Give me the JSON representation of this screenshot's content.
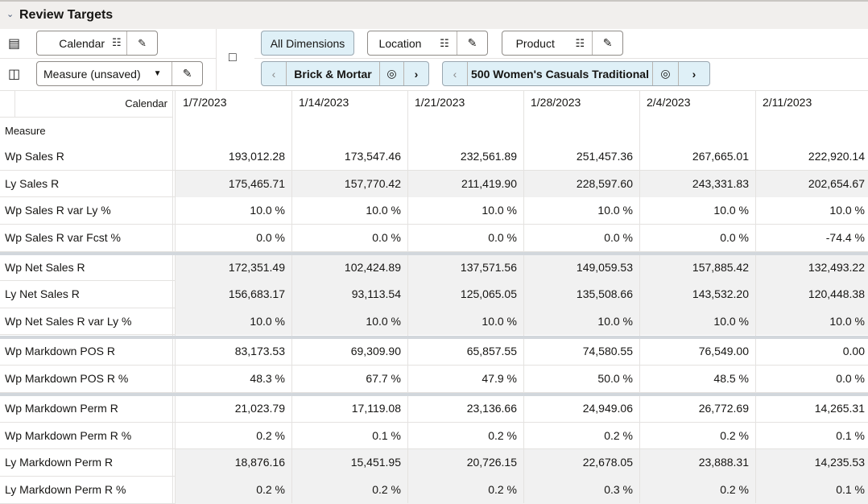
{
  "header": {
    "title": "Review Targets"
  },
  "toolbar": {
    "row_dim": {
      "label": "Calendar"
    },
    "col_dim": {
      "label": "Measure (unsaved)"
    },
    "all_dimensions": "All Dimensions",
    "location": "Location",
    "product": "Product",
    "location_value": "Brick & Mortar",
    "product_value": "500 Women's Casuals Traditional"
  },
  "grid": {
    "corner_col_label": "Calendar",
    "corner_row_label": "Measure",
    "columns": [
      "1/7/2023",
      "1/14/2023",
      "1/21/2023",
      "1/28/2023",
      "2/4/2023",
      "2/11/2023"
    ],
    "rows": [
      {
        "label": "Wp Sales R",
        "values": [
          "193,012.28",
          "173,547.46",
          "232,561.89",
          "251,457.36",
          "267,665.01",
          "222,920.14"
        ]
      },
      {
        "label": "Ly Sales R",
        "values": [
          "175,465.71",
          "157,770.42",
          "211,419.90",
          "228,597.60",
          "243,331.83",
          "202,654.67"
        ]
      },
      {
        "label": "Wp Sales R var Ly %",
        "values": [
          "10.0 %",
          "10.0 %",
          "10.0 %",
          "10.0 %",
          "10.0 %",
          "10.0 %"
        ]
      },
      {
        "label": "Wp Sales R var Fcst %",
        "values": [
          "0.0 %",
          "0.0 %",
          "0.0 %",
          "0.0 %",
          "0.0 %",
          "-74.4 %"
        ]
      },
      {
        "label": "Wp Net Sales R",
        "values": [
          "172,351.49",
          "102,424.89",
          "137,571.56",
          "149,059.53",
          "157,885.42",
          "132,493.22"
        ]
      },
      {
        "label": "Ly Net Sales R",
        "values": [
          "156,683.17",
          "93,113.54",
          "125,065.05",
          "135,508.66",
          "143,532.20",
          "120,448.38"
        ]
      },
      {
        "label": "Wp Net Sales R var Ly %",
        "values": [
          "10.0 %",
          "10.0 %",
          "10.0 %",
          "10.0 %",
          "10.0 %",
          "10.0 %"
        ]
      },
      {
        "label": "Wp Markdown POS R",
        "values": [
          "83,173.53",
          "69,309.90",
          "65,857.55",
          "74,580.55",
          "76,549.00",
          "0.00"
        ]
      },
      {
        "label": "Wp Markdown POS R %",
        "values": [
          "48.3 %",
          "67.7 %",
          "47.9 %",
          "50.0 %",
          "48.5 %",
          "0.0 %"
        ]
      },
      {
        "label": "Wp Markdown Perm R",
        "values": [
          "21,023.79",
          "17,119.08",
          "23,136.66",
          "24,949.06",
          "26,772.69",
          "14,265.31"
        ]
      },
      {
        "label": "Wp Markdown Perm R %",
        "values": [
          "0.2 %",
          "0.1 %",
          "0.2 %",
          "0.2 %",
          "0.2 %",
          "0.1 %"
        ]
      },
      {
        "label": "Ly Markdown Perm R",
        "values": [
          "18,876.16",
          "15,451.95",
          "20,726.15",
          "22,678.05",
          "23,888.31",
          "14,235.53"
        ]
      },
      {
        "label": "Ly Markdown Perm R %",
        "values": [
          "0.2 %",
          "0.2 %",
          "0.2 %",
          "0.3 %",
          "0.2 %",
          "0.1 %"
        ]
      }
    ]
  },
  "colors": {
    "header_bg": "#f1efed",
    "chip_blue": "#dff0f7",
    "shaded_row": "#f1f1f1",
    "group_separator": "#d2d7dc"
  }
}
